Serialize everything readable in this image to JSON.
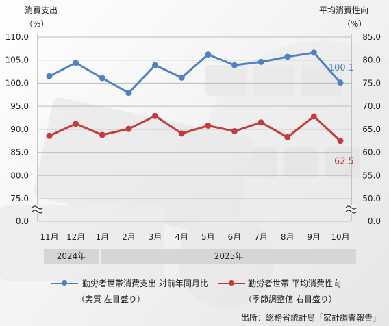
{
  "titles": {
    "left_title": "消費支出",
    "left_unit": "（%）",
    "right_title": "平均消費性向",
    "right_unit": "（%）"
  },
  "years": {
    "y2024": "2024年",
    "y2025": "2025年"
  },
  "legend": {
    "series1_line1": "勤労者世帯消費支出 対前年同月比",
    "series1_line2": "（実質 左目盛り）",
    "series2_line1": "勤労者世帯 平均消費性向",
    "series2_line2": "（季節調整値 右目盛り）"
  },
  "source": "出所：総務省統計局「家計調査報告」",
  "colors": {
    "blue": "#4f82c4",
    "red": "#c43b3b",
    "grid": "#bdbdbd",
    "year_bg": "#d6d6d6"
  },
  "chart_data": {
    "type": "line",
    "categories": [
      "11月",
      "12月",
      "1月",
      "2月",
      "3月",
      "4月",
      "5月",
      "6月",
      "7月",
      "8月",
      "9月",
      "10月"
    ],
    "left_axis": {
      "ticks": [
        110.0,
        105.0,
        100.0,
        95.0,
        90.0,
        85.0,
        80.0,
        75.0
      ],
      "tick_labels": [
        "110.0",
        "105.0",
        "100.0",
        "95.0",
        "90.0",
        "85.0",
        "80.0",
        "75.0"
      ],
      "break": true,
      "bottom_label": "0.0",
      "ylim": [
        75.0,
        110.0
      ]
    },
    "right_axis": {
      "ticks": [
        85.0,
        80.0,
        75.0,
        70.0,
        65.0,
        60.0,
        55.0,
        50.0
      ],
      "tick_labels": [
        "85.0",
        "80.0",
        "75.0",
        "70.0",
        "65.0",
        "60.0",
        "55.0",
        "50.0"
      ],
      "break": true,
      "bottom_label": "0.0",
      "ylim": [
        50.0,
        85.0
      ]
    },
    "grid": true,
    "series": [
      {
        "axis": "left",
        "color": "#4f82c4",
        "values": [
          101.5,
          104.4,
          101.1,
          97.9,
          103.9,
          101.2,
          106.2,
          103.9,
          104.6,
          105.7,
          106.6,
          100.1
        ],
        "end_label": "100.1"
      },
      {
        "axis": "right",
        "color": "#c43b3b",
        "values": [
          63.6,
          66.2,
          63.8,
          65.1,
          67.9,
          64.1,
          65.8,
          64.6,
          66.5,
          63.3,
          67.8,
          62.5
        ],
        "end_label": "62.5"
      }
    ]
  }
}
